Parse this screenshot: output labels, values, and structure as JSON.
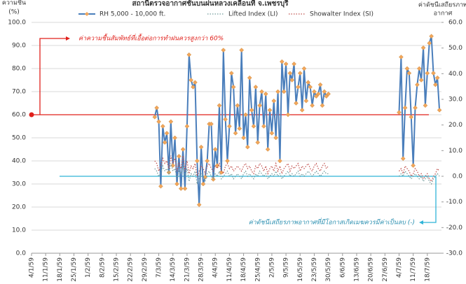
{
  "chart_data": {
    "type": "line",
    "title": "สถานีตรวจอากาศชั้นบนฝนหลวงเคลื่อนที่  จ.เพชรบุรี",
    "ylabel": [
      "ความชื้น",
      "(%)"
    ],
    "y2label": [
      "ค่าดัชนีเสถียรภาพ",
      "อากาศ"
    ],
    "x": [
      61,
      62,
      63,
      64,
      65,
      66,
      67,
      68,
      69,
      70,
      71,
      72,
      73,
      74,
      75,
      76,
      77,
      78,
      79,
      80,
      81,
      82,
      83,
      84,
      85,
      86,
      87,
      88,
      89,
      90,
      91,
      92,
      93,
      94,
      95,
      96,
      97,
      98,
      99,
      100,
      101,
      102,
      103,
      104,
      105,
      106,
      107,
      108,
      109,
      110,
      111,
      112,
      113,
      114,
      115,
      116,
      117,
      118,
      119,
      120,
      121,
      122,
      123,
      124,
      125,
      126,
      127,
      128,
      129,
      130,
      131,
      132,
      133,
      134,
      135,
      136,
      137,
      138,
      139,
      140,
      141,
      142,
      143,
      144,
      145,
      146,
      147,
      160,
      182,
      183,
      184,
      185,
      186,
      187,
      188,
      189,
      190,
      191,
      192,
      193,
      194,
      195,
      196,
      197,
      198,
      199,
      200,
      201,
      202
    ],
    "series": [
      {
        "name": "RH 5,000 - 10,000 ft.",
        "color": "#4a7ebb",
        "marker_color": "#f2a65a",
        "axis": "y",
        "style": "solid",
        "values": [
          59,
          63,
          57,
          29,
          55,
          48,
          52,
          35,
          57,
          38,
          50,
          30,
          42,
          28,
          45,
          28,
          55,
          86,
          75,
          72,
          74,
          40,
          21,
          46,
          30,
          33,
          40,
          56,
          56,
          32,
          45,
          38,
          64,
          35,
          88,
          58,
          40,
          55,
          78,
          72,
          52,
          64,
          54,
          88,
          50,
          60,
          46,
          76,
          62,
          55,
          72,
          48,
          64,
          70,
          55,
          69,
          45,
          62,
          52,
          66,
          50,
          70,
          40,
          83,
          70,
          82,
          60,
          78,
          75,
          82,
          65,
          72,
          78,
          62,
          80,
          66,
          74,
          72,
          64,
          70,
          68,
          69,
          73,
          64,
          70,
          68,
          69,
          null,
          61,
          85,
          41,
          63,
          80,
          78,
          59,
          38,
          63,
          73,
          80,
          75,
          89,
          64,
          78,
          91,
          94,
          78,
          73,
          76,
          62
        ]
      },
      {
        "name": "Lifted Index (LI)",
        "color": "#6f9a9a",
        "axis": "y2",
        "style": "dotted",
        "values": [
          3,
          2,
          0,
          1,
          4,
          2,
          3,
          1,
          5,
          2,
          3,
          -1,
          2,
          1,
          4,
          0,
          3,
          -2,
          1,
          0,
          2,
          -3,
          -1,
          1,
          0,
          -2,
          1,
          2,
          0,
          -1,
          1,
          0,
          2,
          -1,
          0,
          1,
          2,
          0,
          1,
          -1,
          0,
          1,
          0,
          -1,
          1,
          2,
          0,
          1,
          0,
          -1,
          1,
          0,
          2,
          1,
          0,
          1,
          -1,
          0,
          1,
          0,
          2,
          0,
          1,
          -1,
          0,
          1,
          2,
          0,
          1,
          0,
          1,
          2,
          0,
          1,
          0,
          1,
          2,
          1,
          0,
          1,
          2,
          1,
          0,
          1,
          2,
          1,
          1,
          null,
          0,
          1,
          0,
          2,
          1,
          0,
          -1,
          0,
          1,
          0,
          -1,
          0,
          -2,
          -1,
          0,
          -2,
          -3,
          -1,
          0,
          1,
          0
        ]
      },
      {
        "name": "Showalter Index (SI)",
        "color": "#c0504d",
        "axis": "y2",
        "style": "dotted",
        "values": [
          6,
          5,
          2,
          4,
          7,
          5,
          6,
          3,
          8,
          5,
          7,
          2,
          5,
          3,
          8,
          2,
          6,
          1,
          4,
          3,
          5,
          0,
          2,
          4,
          3,
          1,
          4,
          5,
          3,
          2,
          4,
          3,
          5,
          2,
          1,
          4,
          5,
          3,
          4,
          2,
          3,
          4,
          3,
          2,
          4,
          5,
          3,
          4,
          2,
          1,
          4,
          3,
          5,
          4,
          2,
          4,
          1,
          3,
          4,
          2,
          5,
          2,
          4,
          1,
          3,
          4,
          5,
          2,
          4,
          3,
          4,
          5,
          2,
          4,
          3,
          4,
          5,
          3,
          2,
          4,
          5,
          3,
          2,
          4,
          5,
          3,
          4,
          null,
          2,
          3,
          1,
          4,
          3,
          2,
          0,
          1,
          3,
          2,
          0,
          1,
          -1,
          0,
          1,
          -1,
          -2,
          0,
          1,
          3,
          2
        ]
      }
    ],
    "xlim": [
      0,
      203
    ],
    "xticks": [
      {
        "value": 0,
        "label": "4/1/59"
      },
      {
        "value": 7,
        "label": "11/1/59"
      },
      {
        "value": 14,
        "label": "18/1/59"
      },
      {
        "value": 21,
        "label": "25/1/59"
      },
      {
        "value": 28,
        "label": "1/2/59"
      },
      {
        "value": 35,
        "label": "8/2/59"
      },
      {
        "value": 42,
        "label": "15/2/59"
      },
      {
        "value": 49,
        "label": "22/2/59"
      },
      {
        "value": 56,
        "label": "29/2/59"
      },
      {
        "value": 63,
        "label": "7/3/59"
      },
      {
        "value": 70,
        "label": "14/3/59"
      },
      {
        "value": 77,
        "label": "21/3/59"
      },
      {
        "value": 84,
        "label": "28/3/59"
      },
      {
        "value": 91,
        "label": "4/4/59"
      },
      {
        "value": 98,
        "label": "11/4/59"
      },
      {
        "value": 105,
        "label": "18/4/59"
      },
      {
        "value": 112,
        "label": "25/4/59"
      },
      {
        "value": 119,
        "label": "2/5/59"
      },
      {
        "value": 126,
        "label": "9/5/59"
      },
      {
        "value": 133,
        "label": "16/5/59"
      },
      {
        "value": 140,
        "label": "23/5/59"
      },
      {
        "value": 147,
        "label": "30/5/59"
      },
      {
        "value": 154,
        "label": "6/6/59"
      },
      {
        "value": 161,
        "label": "13/6/59"
      },
      {
        "value": 168,
        "label": "20/6/59"
      },
      {
        "value": 175,
        "label": "27/6/59"
      },
      {
        "value": 182,
        "label": "4/7/59"
      },
      {
        "value": 189,
        "label": "11/7/59"
      },
      {
        "value": 196,
        "label": "18/7/59"
      }
    ],
    "ylim": [
      0,
      100
    ],
    "yticks": [
      {
        "value": 0,
        "label": "0.0"
      },
      {
        "value": 10,
        "label": "10.0"
      },
      {
        "value": 20,
        "label": "20.0"
      },
      {
        "value": 30,
        "label": "30.0"
      },
      {
        "value": 40,
        "label": "40.0"
      },
      {
        "value": 50,
        "label": "50.0"
      },
      {
        "value": 60,
        "label": "60.0"
      },
      {
        "value": 70,
        "label": "70.0"
      },
      {
        "value": 80,
        "label": "80.0"
      },
      {
        "value": 90,
        "label": "90.0"
      },
      {
        "value": 100,
        "label": "100.0"
      }
    ],
    "y2lim": [
      -30,
      60
    ],
    "y2ticks": [
      {
        "value": -30,
        "label": "-30.0"
      },
      {
        "value": -20,
        "label": "-20.0"
      },
      {
        "value": -10,
        "label": "-10.0"
      },
      {
        "value": 0,
        "label": "0.0"
      },
      {
        "value": 10,
        "label": "10.0"
      },
      {
        "value": 20,
        "label": "20.0"
      },
      {
        "value": 30,
        "label": "30.0"
      },
      {
        "value": 40,
        "label": "40.0"
      },
      {
        "value": 50,
        "label": "50.0"
      },
      {
        "value": 60,
        "label": "60.0"
      }
    ],
    "grid": true,
    "annotations": [
      {
        "text": "ค่าความชื้นสัมพัทธ์ที่เอื้อต่อการทำฝนควรสูงกว่า 60%",
        "value": 60,
        "axis": "y",
        "color": "#e0201b"
      },
      {
        "text": "ค่าดัชนีเสถียรภาพอากาศที่มีโอกาสเกิดเมฆควรมีค่าเป็นลบ (-)",
        "value": 0,
        "axis": "y2",
        "color": "#2fb4d8"
      }
    ]
  }
}
